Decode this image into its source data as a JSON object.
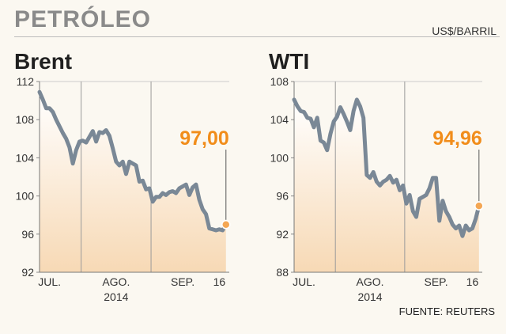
{
  "header": {
    "title": "PETRÓLEO",
    "unit": "US$/BARRIL"
  },
  "source": "FUENTE: REUTERS",
  "colors": {
    "line": "#7a8896",
    "highlight": "#f18d1b",
    "fill_top": "#ffffff",
    "fill_bottom": "#f7d9b5",
    "grid": "#cccccc",
    "marker": "#f4a754"
  },
  "chart_data": [
    {
      "type": "area",
      "title": "Brent",
      "ylim": [
        92,
        112
      ],
      "yticks": [
        92,
        96,
        100,
        104,
        108,
        112
      ],
      "x_range": [
        0,
        57
      ],
      "x_labels": [
        {
          "x": 3,
          "label": "JUL.",
          "sub": ""
        },
        {
          "x": 23,
          "label": "AGO.",
          "sub": "2014"
        },
        {
          "x": 43,
          "label": "SEP.",
          "sub": ""
        },
        {
          "x": 54,
          "label": "16",
          "sub": ""
        }
      ],
      "vlines": [
        12.5,
        33.5
      ],
      "last_value": "97,00",
      "y": [
        110.9,
        110.1,
        109.2,
        109.2,
        108.8,
        108,
        107.3,
        106.6,
        106,
        105.1,
        103.4,
        104.8,
        105.7,
        105.8,
        105.6,
        106.2,
        106.8,
        105.7,
        106.7,
        106.6,
        106.9,
        106.3,
        105,
        103.6,
        103.2,
        103.6,
        102.3,
        103.6,
        103.4,
        103.2,
        101.5,
        101.6,
        100.7,
        100.8,
        99.4,
        99.9,
        99.9,
        100.3,
        100.1,
        100.4,
        100.5,
        100.3,
        100.8,
        101,
        101.2,
        100.1,
        100.9,
        101.2,
        99.6,
        98.6,
        98.1,
        96.6,
        96.5,
        96.4,
        96.5,
        96.4,
        97
      ]
    },
    {
      "type": "area",
      "title": "WTI",
      "ylim": [
        88,
        108
      ],
      "yticks": [
        88,
        92,
        96,
        100,
        104,
        108
      ],
      "x_range": [
        0,
        57
      ],
      "x_labels": [
        {
          "x": 3,
          "label": "JUL.",
          "sub": ""
        },
        {
          "x": 23,
          "label": "AGO.",
          "sub": "2014"
        },
        {
          "x": 43,
          "label": "SEP.",
          "sub": ""
        },
        {
          "x": 54,
          "label": "16",
          "sub": ""
        }
      ],
      "vlines": [
        12.5,
        33.5
      ],
      "last_value": "94,96",
      "y": [
        106.1,
        105.4,
        104.9,
        104.8,
        104.2,
        104.1,
        103.2,
        104.2,
        101.8,
        101.6,
        100.8,
        102.5,
        103.8,
        104.3,
        105.3,
        104.6,
        103.8,
        102.9,
        104.9,
        106.1,
        105.4,
        104.2,
        98.2,
        97.9,
        98.5,
        97.5,
        97.1,
        97.5,
        97.7,
        98.1,
        97.4,
        97.7,
        96.6,
        97.1,
        95.2,
        96.1,
        94.4,
        93.8,
        95.7,
        95.9,
        96.1,
        96.8,
        97.9,
        97.9,
        93.4,
        95.5,
        94.4,
        93.8,
        93,
        92.6,
        92.9,
        91.8,
        92.9,
        92.4,
        92.6,
        93.6,
        94.96
      ]
    }
  ]
}
